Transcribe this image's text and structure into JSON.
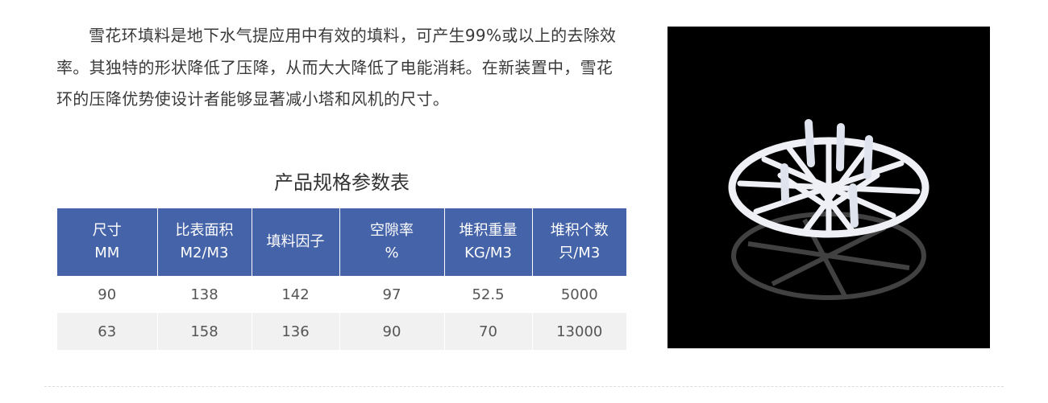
{
  "description": "雪花环填料是地下水气提应用中有效的填料，可产生99%或以上的去除效率。其独特的形状降低了压降，从而大大降低了电能消耗。在新装置中，雪花环的压降优势使设计者能够显著减小塔和风机的尺寸。",
  "table_title": "产品规格参数表",
  "table": {
    "headers": [
      {
        "line1": "尺寸",
        "line2": "MM"
      },
      {
        "line1": "比表面积",
        "line2": "M2/M3"
      },
      {
        "line1": "填料因子",
        "line2": ""
      },
      {
        "line1": "空隙率",
        "line2": "%"
      },
      {
        "line1": "堆积重量",
        "line2": "KG/M3"
      },
      {
        "line1": "堆积个数",
        "line2": "只/M3"
      }
    ],
    "rows": [
      [
        "90",
        "138",
        "142",
        "97",
        "52.5",
        "5000"
      ],
      [
        "63",
        "158",
        "136",
        "90",
        "70",
        "13000"
      ]
    ]
  },
  "colors": {
    "header_bg": "#4563a8",
    "alt_row_bg": "#f1f1f1"
  },
  "image": {
    "subject": "snowflake-ring-packing-photo"
  }
}
